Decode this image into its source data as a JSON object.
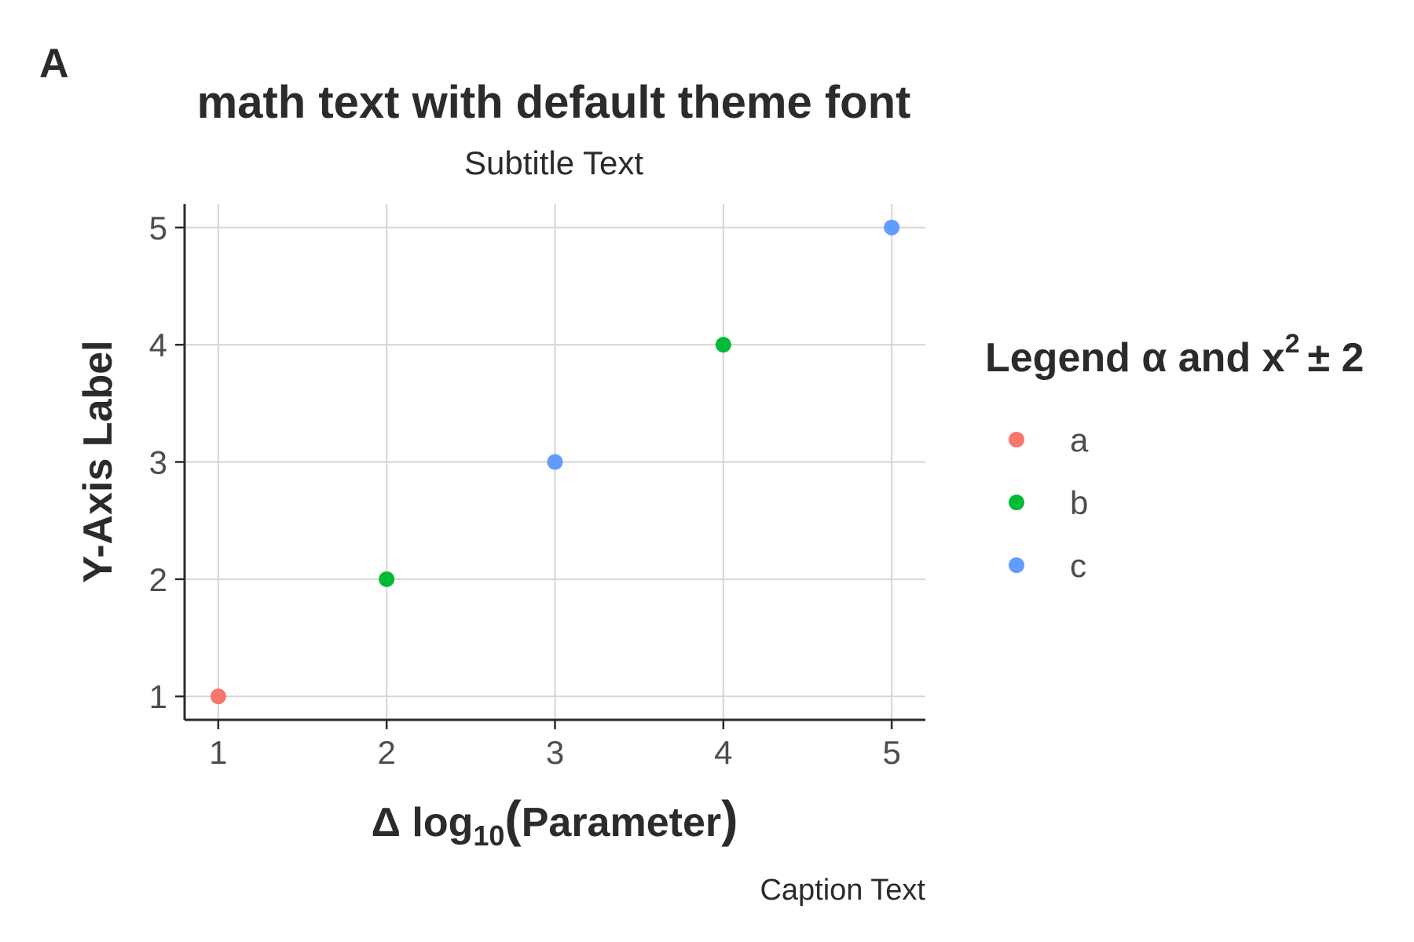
{
  "panel_tag": "A",
  "chart_data": {
    "type": "scatter",
    "title": "math text with default theme font",
    "subtitle": "Subtitle Text",
    "caption": "Caption Text",
    "xlabel": {
      "prefix": "Δ log",
      "subscript": "10",
      "open": "(",
      "word": "Parameter",
      "close": ")"
    },
    "ylabel": "Y-Axis Label",
    "xlim": [
      0.8,
      5.2
    ],
    "ylim": [
      0.8,
      5.2
    ],
    "x_ticks": [
      "1",
      "2",
      "3",
      "4",
      "5"
    ],
    "y_ticks": [
      "1",
      "2",
      "3",
      "4",
      "5"
    ],
    "grid": true,
    "legend_position": "right",
    "legend": {
      "title_prefix": "Legend α and x",
      "title_superscript": "2",
      "title_suffix": "± 2",
      "entries": [
        {
          "label": "a",
          "color": "#F8766D"
        },
        {
          "label": "b",
          "color": "#00BA38"
        },
        {
          "label": "c",
          "color": "#619CFF"
        }
      ]
    },
    "points": [
      {
        "x": 1,
        "y": 1,
        "group": "a"
      },
      {
        "x": 2,
        "y": 2,
        "group": "b"
      },
      {
        "x": 3,
        "y": 3,
        "group": "c"
      },
      {
        "x": 4,
        "y": 4,
        "group": "b"
      },
      {
        "x": 5,
        "y": 5,
        "group": "c"
      }
    ]
  }
}
